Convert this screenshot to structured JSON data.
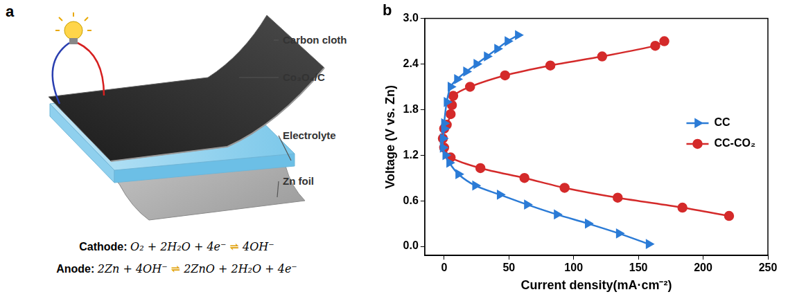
{
  "diagram": {
    "panel_label": "a",
    "labels": [
      "Carbon cloth",
      "Co₃O₄/C",
      "Electrolyte",
      "Zn foil"
    ],
    "equations": [
      {
        "label": "Cathode:",
        "equation": "O₂ + 2H₂O + 4e⁻ ⇌ 4OH⁻"
      },
      {
        "label": "Anode:",
        "equation": "2Zn + 4OH⁻ ⇌ 2ZnO + 2H₂O + 4e⁻"
      }
    ]
  },
  "chart_data": {
    "type": "line",
    "panel_label": "b",
    "x_label": "Current density(mA·cm⁻²)",
    "y_label": "Voltage (V vs. Zn)",
    "xlim": [
      -15,
      250
    ],
    "xticks": [
      0,
      50,
      100,
      150,
      200,
      250
    ],
    "ylim": [
      -0.12,
      3.0
    ],
    "yticks": [
      {
        "value": 0,
        "label": "0.0"
      },
      0.6,
      1.2,
      1.8,
      2.4,
      {
        "value": 3,
        "label": "3.0"
      }
    ],
    "grid": false,
    "legend": "right",
    "series": [
      {
        "name": "CC",
        "color": "#2b7bd6",
        "marker": "triangle-right",
        "line_style": "solid",
        "x": [
          158,
          135,
          111,
          87,
          64,
          43,
          24,
          11,
          4,
          1,
          -1,
          -1,
          0,
          0,
          2,
          5,
          10,
          17,
          25,
          33,
          41,
          49,
          57
        ],
        "values": [
          0.03,
          0.17,
          0.3,
          0.42,
          0.55,
          0.68,
          0.8,
          0.95,
          1.1,
          1.2,
          1.3,
          1.42,
          1.55,
          1.62,
          1.9,
          2.1,
          2.2,
          2.3,
          2.4,
          2.5,
          2.6,
          2.7,
          2.78
        ]
      },
      {
        "name": "CC-CO₂",
        "color": "#d42a2a",
        "marker": "circle",
        "line_style": "solid",
        "x": [
          220,
          184,
          134,
          93,
          62,
          28,
          5,
          0,
          -1,
          0,
          2,
          5,
          6,
          7,
          20,
          47,
          82,
          122,
          163,
          170
        ],
        "values": [
          0.4,
          0.51,
          0.64,
          0.77,
          0.9,
          1.03,
          1.17,
          1.3,
          1.42,
          1.55,
          1.6,
          1.74,
          1.86,
          1.98,
          2.1,
          2.25,
          2.38,
          2.5,
          2.64,
          2.7
        ]
      }
    ]
  }
}
